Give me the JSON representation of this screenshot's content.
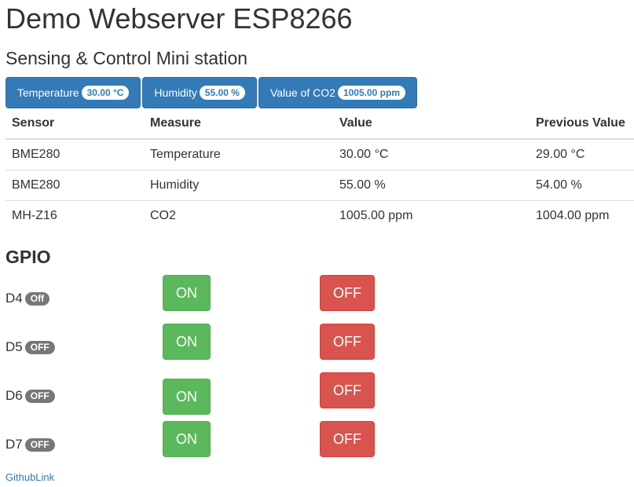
{
  "page": {
    "title": "Demo Webserver ESP8266",
    "subtitle": "Sensing & Control Mini station"
  },
  "pills": [
    {
      "label": "Temperature",
      "badge": "30.00 °C"
    },
    {
      "label": "Humidity",
      "badge": "55.00 %"
    },
    {
      "label": "Value of CO2",
      "badge": "1005.00 ppm"
    }
  ],
  "table": {
    "headers": [
      "Sensor",
      "Measure",
      "Value",
      "Previous Value"
    ],
    "rows": [
      [
        "BME280",
        "Temperature",
        "30.00 °C",
        "29.00 °C"
      ],
      [
        "BME280",
        "Humidity",
        "55.00 %",
        "54.00 %"
      ],
      [
        "MH-Z16",
        "CO2",
        "1005.00 ppm",
        "1004.00 ppm"
      ]
    ]
  },
  "gpio": {
    "title": "GPIO",
    "on_label": "ON",
    "off_label": "OFF",
    "pins": [
      {
        "name": "D4",
        "state": "Off"
      },
      {
        "name": "D5",
        "state": "OFF"
      },
      {
        "name": "D6",
        "state": "OFF"
      },
      {
        "name": "D7",
        "state": "OFF"
      }
    ]
  },
  "footer": {
    "github_link": "GithubLink"
  },
  "colors": {
    "primary": "#337ab7",
    "success": "#5cb85c",
    "danger": "#d9534f",
    "badge_gray": "#777777"
  }
}
